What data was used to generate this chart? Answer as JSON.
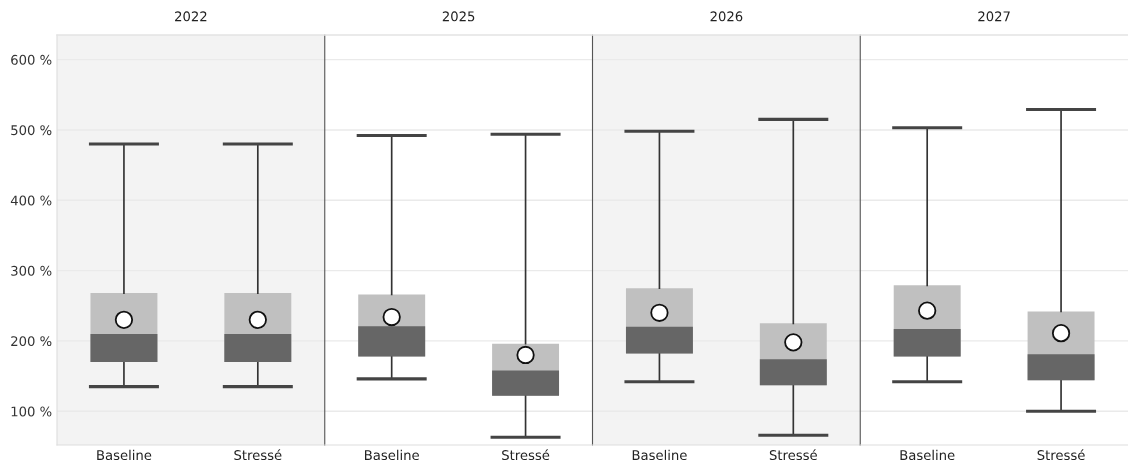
{
  "chart_data": [
    {
      "type": "box",
      "title": "2022",
      "categories": [
        "Baseline",
        "Stressé"
      ],
      "ylim": [
        52,
        635
      ],
      "yticks": [
        {
          "value": 100,
          "label": "100 %"
        },
        {
          "value": 200,
          "label": "200 %"
        },
        {
          "value": 300,
          "label": "300 %"
        },
        {
          "value": 400,
          "label": "400 %"
        },
        {
          "value": 500,
          "label": "500 %"
        },
        {
          "value": 600,
          "label": "600 %"
        }
      ],
      "grid": "y",
      "tick_labels": "xy",
      "boxes": [
        {
          "low": 135,
          "q1": 170,
          "median": 210,
          "q3": 268,
          "high": 480,
          "mean": 230
        },
        {
          "low": 135,
          "q1": 170,
          "median": 210,
          "q3": 268,
          "high": 480,
          "mean": 230
        }
      ]
    },
    {
      "type": "box",
      "title": "2025",
      "categories": [
        "Baseline",
        "Stressé"
      ],
      "ylim": [
        52,
        635
      ],
      "grid": "y",
      "tick_labels": "x",
      "boxes": [
        {
          "low": 146,
          "q1": 178,
          "median": 221,
          "q3": 266,
          "high": 492,
          "mean": 234
        },
        {
          "low": 63,
          "q1": 122,
          "median": 158,
          "q3": 196,
          "high": 494,
          "mean": 180
        }
      ]
    },
    {
      "type": "box",
      "title": "2026",
      "categories": [
        "Baseline",
        "Stressé"
      ],
      "ylim": [
        52,
        635
      ],
      "grid": "y",
      "tick_labels": "x",
      "boxes": [
        {
          "low": 142,
          "q1": 182,
          "median": 220,
          "q3": 275,
          "high": 498,
          "mean": 240
        },
        {
          "low": 66,
          "q1": 137,
          "median": 174,
          "q3": 225,
          "high": 515,
          "mean": 198
        }
      ]
    },
    {
      "type": "box",
      "title": "2027",
      "categories": [
        "Baseline",
        "Stressé"
      ],
      "ylim": [
        52,
        635
      ],
      "grid": "y",
      "tick_labels": "x",
      "boxes": [
        {
          "low": 142,
          "q1": 178,
          "median": 217,
          "q3": 279,
          "high": 503,
          "mean": 243
        },
        {
          "low": 100,
          "q1": 144,
          "median": 181,
          "q3": 242,
          "high": 529,
          "mean": 211
        }
      ]
    }
  ]
}
